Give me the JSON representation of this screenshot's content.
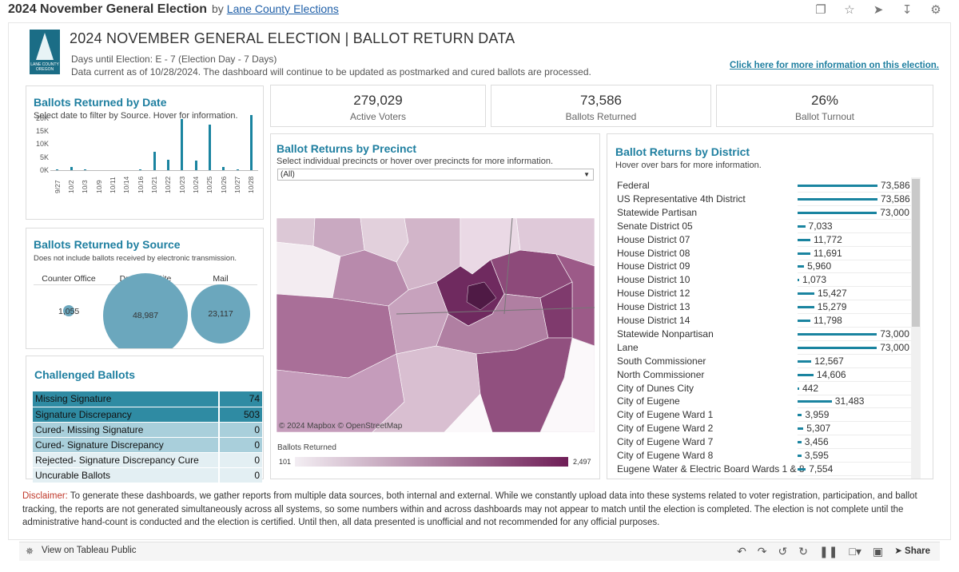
{
  "header": {
    "title": "2024 November General Election",
    "by": "by",
    "author": "Lane County Elections"
  },
  "dashboard": {
    "logo_text": "LANE COUNTY OREGON",
    "title": "2024 NOVEMBER GENERAL ELECTION | BALLOT RETURN DATA",
    "days_until": "Days until Election: E - 7 (Election Day - 7 Days)",
    "data_current": "Data current as of 10/28/2024. The dashboard will continue to be updated as postmarked and cured ballots are processed.",
    "info_link": "Click here for more information on this election."
  },
  "kpis": [
    {
      "value": "279,029",
      "label": "Active Voters"
    },
    {
      "value": "73,586",
      "label": "Ballots Returned"
    },
    {
      "value": "26%",
      "label": "Ballot Turnout"
    }
  ],
  "ballots_by_date": {
    "title": "Ballots Returned by Date",
    "subtitle": "Select date to filter by Source. Hover for information.",
    "y_ticks": [
      "20K",
      "15K",
      "10K",
      "5K",
      "0K"
    ],
    "ylim": [
      0,
      22000
    ],
    "dates": [
      "9/27",
      "10/2",
      "10/3",
      "10/9",
      "10/11",
      "10/14",
      "10/16",
      "10/21",
      "10/22",
      "10/23",
      "10/24",
      "10/25",
      "10/26",
      "10/27",
      "10/28"
    ],
    "values": [
      500,
      1500,
      600,
      200,
      300,
      200,
      700,
      7200,
      4200,
      20000,
      4100,
      17800,
      1600,
      700,
      21500
    ]
  },
  "ballots_by_source": {
    "title": "Ballots Returned by Source",
    "subtitle": "Does not include ballots received by electronic transmission.",
    "items": [
      {
        "label": "Counter Office",
        "value": "1,055"
      },
      {
        "label": "Drop Box Site",
        "value": "48,987"
      },
      {
        "label": "Mail",
        "value": "23,117"
      }
    ]
  },
  "challenged": {
    "title": "Challenged Ballots",
    "rows": [
      {
        "label": "Missing Signature",
        "value": "74"
      },
      {
        "label": "Signature Discrepancy",
        "value": "503"
      },
      {
        "label": "Cured- Missing Signature",
        "value": "0"
      },
      {
        "label": "Cured- Signature Discrepancy",
        "value": "0"
      },
      {
        "label": "Rejected- Signature Discrepancy Cure",
        "value": "0"
      },
      {
        "label": "Uncurable Ballots",
        "value": "0"
      }
    ]
  },
  "precinct": {
    "title": "Ballot Returns by Precinct",
    "subtitle": "Select individual precincts or hover over precincts for more information.",
    "filter_value": "(All)",
    "credit": "© 2024 Mapbox  © OpenStreetMap",
    "legend_title": "Ballots Returned",
    "legend_min": "101",
    "legend_max": "2,497"
  },
  "district": {
    "title": "Ballot Returns by District",
    "subtitle": "Hover over bars for more information.",
    "rows": [
      {
        "name": "Federal",
        "value": 73586,
        "label": "73,586"
      },
      {
        "name": "US Representative 4th District",
        "value": 73586,
        "label": "73,586"
      },
      {
        "name": "Statewide Partisan",
        "value": 73000,
        "label": "73,000"
      },
      {
        "name": "Senate District 05",
        "value": 7033,
        "label": "7,033"
      },
      {
        "name": "House District 07",
        "value": 11772,
        "label": "11,772"
      },
      {
        "name": "House District 08",
        "value": 11691,
        "label": "11,691"
      },
      {
        "name": "House District 09",
        "value": 5960,
        "label": "5,960"
      },
      {
        "name": "House District 10",
        "value": 1073,
        "label": "1,073"
      },
      {
        "name": "House District 12",
        "value": 15427,
        "label": "15,427"
      },
      {
        "name": "House District 13",
        "value": 15279,
        "label": "15,279"
      },
      {
        "name": "House District 14",
        "value": 11798,
        "label": "11,798"
      },
      {
        "name": "Statewide Nonpartisan",
        "value": 73000,
        "label": "73,000"
      },
      {
        "name": "Lane",
        "value": 73000,
        "label": "73,000"
      },
      {
        "name": "South Commissioner",
        "value": 12567,
        "label": "12,567"
      },
      {
        "name": "North Commissioner",
        "value": 14606,
        "label": "14,606"
      },
      {
        "name": "City of Dunes City",
        "value": 442,
        "label": "442"
      },
      {
        "name": "City of Eugene",
        "value": 31483,
        "label": "31,483"
      },
      {
        "name": "City of Eugene Ward 1",
        "value": 3959,
        "label": "3,959"
      },
      {
        "name": "City of Eugene Ward 2",
        "value": 5307,
        "label": "5,307"
      },
      {
        "name": "City of Eugene Ward 7",
        "value": 3456,
        "label": "3,456"
      },
      {
        "name": "City of Eugene Ward 8",
        "value": 3595,
        "label": "3,595"
      },
      {
        "name": "Eugene Water & Electric Board Wards 1 & 8",
        "value": 7554,
        "label": "7,554"
      }
    ]
  },
  "disclaimer": {
    "label": "Disclaimer:",
    "text": " To generate these dashboards, we gather reports from multiple data sources, both internal and external. While we constantly upload data into these systems related to voter registration, participation, and ballot tracking, the reports are not generated simultaneously across all systems, so some numbers within and across dashboards may not appear to match until the election is completed. The election is not complete until the administrative hand-count is conducted and the election is certified. Until then, all data presented is unofficial and not recommended for any official purposes."
  },
  "footer": {
    "view_label": "View on Tableau Public",
    "share_label": "Share"
  },
  "colors": {
    "teal": "#1a84a0",
    "bubble": "#6ba7bd",
    "map_dark": "#6f1e57",
    "link": "#1f7fa0"
  }
}
